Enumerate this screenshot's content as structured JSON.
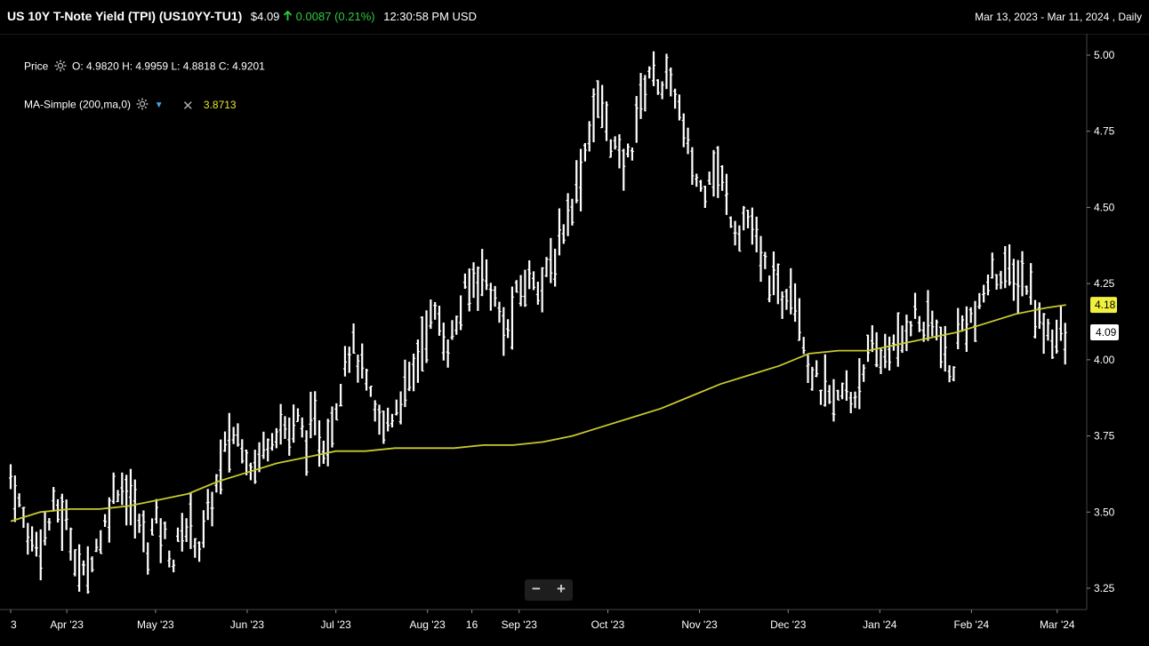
{
  "header": {
    "symbol_title": "US 10Y T-Note Yield (TPI) (US10YY-TU1)",
    "price": "$4.09",
    "change_icon": "arrow-up-icon",
    "change": "0.0087",
    "change_pct": "(0.21%)",
    "time": "12:30:58 PM USD",
    "date_range": "Mar 13, 2023 - Mar 11, 2024 , Daily"
  },
  "legend": {
    "price_label": "Price",
    "ohlc": "O: 4.9820  H: 4.9959  L: 4.8818  C: 4.9201",
    "ma_label": "MA-Simple (200,ma,0)",
    "ma_value": "3.8713"
  },
  "zoom": {
    "minus": "−",
    "plus": "+"
  },
  "colors": {
    "bars": "#ffffff",
    "ma": "#c8c832",
    "ma_badge": "#f0f040",
    "price_badge": "#ffffff",
    "background": "#000000"
  },
  "chart_data": {
    "type": "ohlc",
    "ylim": [
      3.18,
      5.07
    ],
    "yticks": [
      3.25,
      3.5,
      3.75,
      4.0,
      4.25,
      4.5,
      4.75,
      5.0
    ],
    "ytick_labels": [
      "3.25",
      "3.50",
      "3.75",
      "4.00",
      "4.25",
      "4.50",
      "4.75",
      "5.00"
    ],
    "xticks": [
      {
        "label": "3",
        "day": 0
      },
      {
        "label": "Apr '23",
        "day": 19
      },
      {
        "label": "May '23",
        "day": 49
      },
      {
        "label": "Jun '23",
        "day": 80
      },
      {
        "label": "Jul '23",
        "day": 110
      },
      {
        "label": "Aug '23",
        "day": 141
      },
      {
        "label": "16",
        "day": 156
      },
      {
        "label": "Sep '23",
        "day": 172
      },
      {
        "label": "Oct '23",
        "day": 202
      },
      {
        "label": "Nov '23",
        "day": 233
      },
      {
        "label": "Dec '23",
        "day": 263
      },
      {
        "label": "Jan '24",
        "day": 294
      },
      {
        "label": "Feb '24",
        "day": 325
      },
      {
        "label": "Mar '24",
        "day": 354
      }
    ],
    "xlim": [
      0,
      364
    ],
    "close_path": [
      [
        0,
        3.62
      ],
      [
        3,
        3.52
      ],
      [
        6,
        3.42
      ],
      [
        9,
        3.4
      ],
      [
        12,
        3.44
      ],
      [
        15,
        3.52
      ],
      [
        18,
        3.48
      ],
      [
        21,
        3.4
      ],
      [
        23,
        3.32
      ],
      [
        25,
        3.28
      ],
      [
        28,
        3.38
      ],
      [
        31,
        3.42
      ],
      [
        34,
        3.55
      ],
      [
        37,
        3.6
      ],
      [
        40,
        3.55
      ],
      [
        43,
        3.48
      ],
      [
        46,
        3.38
      ],
      [
        49,
        3.48
      ],
      [
        52,
        3.42
      ],
      [
        55,
        3.34
      ],
      [
        58,
        3.44
      ],
      [
        61,
        3.46
      ],
      [
        64,
        3.38
      ],
      [
        67,
        3.5
      ],
      [
        70,
        3.6
      ],
      [
        73,
        3.72
      ],
      [
        76,
        3.76
      ],
      [
        79,
        3.72
      ],
      [
        82,
        3.64
      ],
      [
        85,
        3.7
      ],
      [
        88,
        3.76
      ],
      [
        91,
        3.79
      ],
      [
        94,
        3.76
      ],
      [
        97,
        3.8
      ],
      [
        100,
        3.74
      ],
      [
        103,
        3.78
      ],
      [
        106,
        3.72
      ],
      [
        109,
        3.8
      ],
      [
        111,
        3.9
      ],
      [
        114,
        4.05
      ],
      [
        117,
        4.02
      ],
      [
        120,
        3.92
      ],
      [
        123,
        3.82
      ],
      [
        126,
        3.78
      ],
      [
        129,
        3.82
      ],
      [
        132,
        3.88
      ],
      [
        135,
        3.92
      ],
      [
        138,
        4.02
      ],
      [
        141,
        4.12
      ],
      [
        144,
        4.15
      ],
      [
        147,
        4.05
      ],
      [
        150,
        4.08
      ],
      [
        153,
        4.2
      ],
      [
        156,
        4.25
      ],
      [
        159,
        4.3
      ],
      [
        162,
        4.25
      ],
      [
        165,
        4.15
      ],
      [
        168,
        4.08
      ],
      [
        171,
        4.2
      ],
      [
        174,
        4.25
      ],
      [
        177,
        4.28
      ],
      [
        180,
        4.25
      ],
      [
        183,
        4.3
      ],
      [
        186,
        4.4
      ],
      [
        189,
        4.5
      ],
      [
        192,
        4.58
      ],
      [
        195,
        4.72
      ],
      [
        198,
        4.85
      ],
      [
        201,
        4.8
      ],
      [
        204,
        4.7
      ],
      [
        207,
        4.62
      ],
      [
        210,
        4.7
      ],
      [
        213,
        4.85
      ],
      [
        216,
        4.95
      ],
      [
        219,
        4.92
      ],
      [
        222,
        4.9
      ],
      [
        225,
        4.88
      ],
      [
        228,
        4.72
      ],
      [
        231,
        4.62
      ],
      [
        234,
        4.55
      ],
      [
        237,
        4.65
      ],
      [
        240,
        4.6
      ],
      [
        243,
        4.5
      ],
      [
        246,
        4.42
      ],
      [
        249,
        4.48
      ],
      [
        252,
        4.38
      ],
      [
        255,
        4.3
      ],
      [
        258,
        4.25
      ],
      [
        261,
        4.2
      ],
      [
        264,
        4.28
      ],
      [
        267,
        4.15
      ],
      [
        270,
        3.98
      ],
      [
        273,
        3.92
      ],
      [
        276,
        3.88
      ],
      [
        279,
        3.85
      ],
      [
        282,
        3.9
      ],
      [
        285,
        3.86
      ],
      [
        288,
        3.98
      ],
      [
        291,
        4.02
      ],
      [
        294,
        4.0
      ],
      [
        297,
        4.05
      ],
      [
        300,
        4.02
      ],
      [
        303,
        4.12
      ],
      [
        306,
        4.15
      ],
      [
        309,
        4.1
      ],
      [
        312,
        4.12
      ],
      [
        315,
        4.05
      ],
      [
        318,
        3.92
      ],
      [
        321,
        4.1
      ],
      [
        324,
        4.15
      ],
      [
        327,
        4.12
      ],
      [
        330,
        4.25
      ],
      [
        333,
        4.28
      ],
      [
        336,
        4.3
      ],
      [
        339,
        4.25
      ],
      [
        342,
        4.28
      ],
      [
        345,
        4.22
      ],
      [
        348,
        4.12
      ],
      [
        351,
        4.1
      ],
      [
        354,
        4.08
      ],
      [
        357,
        4.06
      ]
    ],
    "ma_series": {
      "name": "MA-Simple (200,ma,0)",
      "points": [
        [
          0,
          3.47
        ],
        [
          10,
          3.5
        ],
        [
          20,
          3.51
        ],
        [
          30,
          3.51
        ],
        [
          40,
          3.52
        ],
        [
          50,
          3.54
        ],
        [
          60,
          3.56
        ],
        [
          70,
          3.6
        ],
        [
          80,
          3.63
        ],
        [
          90,
          3.66
        ],
        [
          100,
          3.68
        ],
        [
          110,
          3.7
        ],
        [
          120,
          3.7
        ],
        [
          130,
          3.71
        ],
        [
          140,
          3.71
        ],
        [
          150,
          3.71
        ],
        [
          160,
          3.72
        ],
        [
          170,
          3.72
        ],
        [
          180,
          3.73
        ],
        [
          190,
          3.75
        ],
        [
          200,
          3.78
        ],
        [
          210,
          3.81
        ],
        [
          220,
          3.84
        ],
        [
          230,
          3.88
        ],
        [
          240,
          3.92
        ],
        [
          250,
          3.95
        ],
        [
          260,
          3.98
        ],
        [
          270,
          4.02
        ],
        [
          280,
          4.03
        ],
        [
          290,
          4.03
        ],
        [
          300,
          4.05
        ],
        [
          310,
          4.07
        ],
        [
          320,
          4.09
        ],
        [
          330,
          4.12
        ],
        [
          340,
          4.15
        ],
        [
          350,
          4.17
        ],
        [
          357,
          4.18
        ]
      ],
      "last": 4.18,
      "last_label": "4.18"
    },
    "last_price": 4.09,
    "last_price_label": "4.09"
  }
}
